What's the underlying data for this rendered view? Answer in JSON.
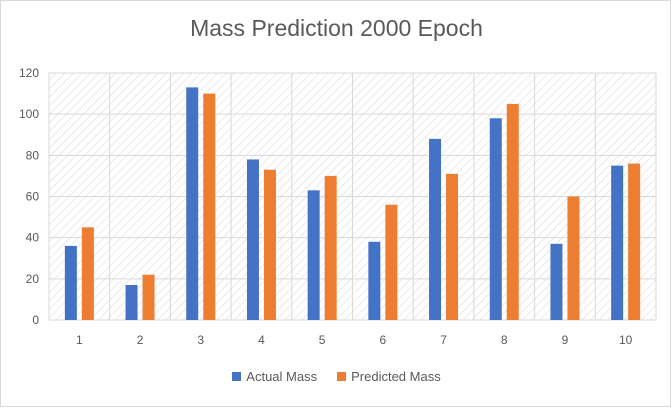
{
  "chart_data": {
    "type": "bar",
    "title": "Mass Prediction 2000 Epoch",
    "xlabel": "",
    "ylabel": "",
    "categories": [
      "1",
      "2",
      "3",
      "4",
      "5",
      "6",
      "7",
      "8",
      "9",
      "10"
    ],
    "series": [
      {
        "name": "Actual Mass",
        "color": "#4472c4",
        "values": [
          36,
          17,
          113,
          78,
          63,
          38,
          88,
          98,
          37,
          75
        ]
      },
      {
        "name": "Predicted Mass",
        "color": "#ed7d31",
        "values": [
          45,
          22,
          110,
          73,
          70,
          56,
          71,
          105,
          60,
          76
        ]
      }
    ],
    "ylim": [
      0,
      120
    ],
    "yticks": [
      "0",
      "20",
      "40",
      "60",
      "80",
      "100",
      "120"
    ],
    "grid": true,
    "legend": "bottom"
  }
}
